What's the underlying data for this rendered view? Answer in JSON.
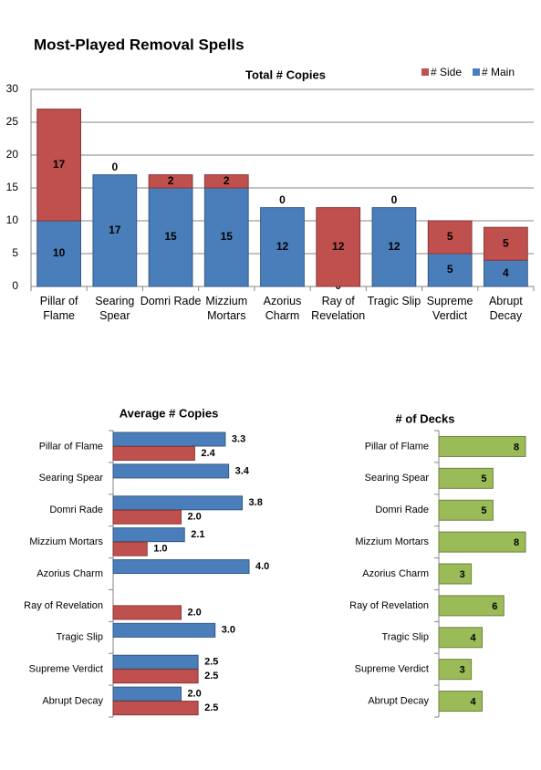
{
  "header": {
    "title": "Most-Played  Removal Spells"
  },
  "chart_data": [
    {
      "type": "bar",
      "stacked": true,
      "title": "Total # Copies",
      "categories": [
        "Pillar of Flame",
        "Searing Spear",
        "Domri Rade",
        "Mizzium Mortars",
        "Azorius Charm",
        "Ray of Revelation",
        "Tragic Slip",
        "Supreme Verdict",
        "Abrupt Decay"
      ],
      "series": [
        {
          "name": "# Main",
          "color": "#4a7ebb",
          "values": [
            10,
            17,
            15,
            15,
            12,
            0,
            12,
            5,
            4
          ]
        },
        {
          "name": "# Side",
          "color": "#c0504d",
          "values": [
            17,
            0,
            2,
            2,
            0,
            12,
            0,
            5,
            5
          ]
        }
      ],
      "ylim": [
        0,
        30
      ],
      "yticks": [
        0,
        5,
        10,
        15,
        20,
        25,
        30
      ],
      "grid": true,
      "legend": "top-right"
    },
    {
      "type": "barh",
      "title": "Average # Copies",
      "categories": [
        "Pillar of Flame",
        "Searing Spear",
        "Domri Rade",
        "Mizzium Mortars",
        "Azorius Charm",
        "Ray of Revelation",
        "Tragic Slip",
        "Supreme Verdict",
        "Abrupt Decay"
      ],
      "series": [
        {
          "color": "#4a7ebb",
          "values": [
            3.3,
            3.4,
            3.8,
            2.1,
            4.0,
            null,
            3.0,
            2.5,
            2.0
          ],
          "value_labels": [
            "3.3",
            "3.4",
            "3.8",
            "2.1",
            "4.0",
            null,
            "3.0",
            "2.5",
            "2.0"
          ]
        },
        {
          "color": "#c0504d",
          "values": [
            2.4,
            null,
            2.0,
            1.0,
            null,
            2.0,
            null,
            2.5,
            2.5
          ],
          "value_labels": [
            "2.4",
            null,
            "2.0",
            "1.0",
            null,
            "2.0",
            null,
            "2.5",
            "2.5"
          ]
        }
      ],
      "xlim": [
        0,
        4.5
      ]
    },
    {
      "type": "barh",
      "title": "# of Decks",
      "categories": [
        "Pillar of Flame",
        "Searing Spear",
        "Domri Rade",
        "Mizzium Mortars",
        "Azorius Charm",
        "Ray of Revelation",
        "Tragic Slip",
        "Supreme Verdict",
        "Abrupt Decay"
      ],
      "series": [
        {
          "color": "#9bbb59",
          "values": [
            8,
            5,
            5,
            8,
            3,
            6,
            4,
            3,
            4
          ]
        }
      ],
      "xlim": [
        0,
        8
      ]
    }
  ]
}
